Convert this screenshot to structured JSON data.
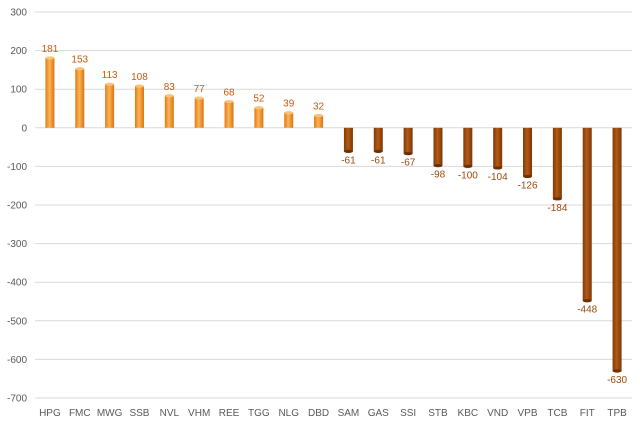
{
  "chart_data": {
    "type": "bar",
    "title": "",
    "xlabel": "",
    "ylabel": "",
    "ylim": [
      -700,
      300
    ],
    "yticks": [
      300,
      200,
      100,
      0,
      -100,
      -200,
      -300,
      -400,
      -500,
      -600,
      -700
    ],
    "grid": true,
    "legend": "none",
    "categories": [
      "HPG",
      "FMC",
      "MWG",
      "SSB",
      "NVL",
      "VHM",
      "REE",
      "TGG",
      "NLG",
      "DBD",
      "SAM",
      "GAS",
      "SSI",
      "STB",
      "KBC",
      "VND",
      "VPB",
      "TCB",
      "FIT",
      "TPB"
    ],
    "values": [
      181,
      153,
      113,
      108,
      83,
      77,
      68,
      52,
      39,
      32,
      -61,
      -61,
      -67,
      -98,
      -100,
      -104,
      -126,
      -184,
      -448,
      -630
    ],
    "colors": {
      "positive": "#f79b2e",
      "negative": "#9c4a0c",
      "positive_label": "#c55a11",
      "negative_label": "#9c4a0c"
    }
  }
}
